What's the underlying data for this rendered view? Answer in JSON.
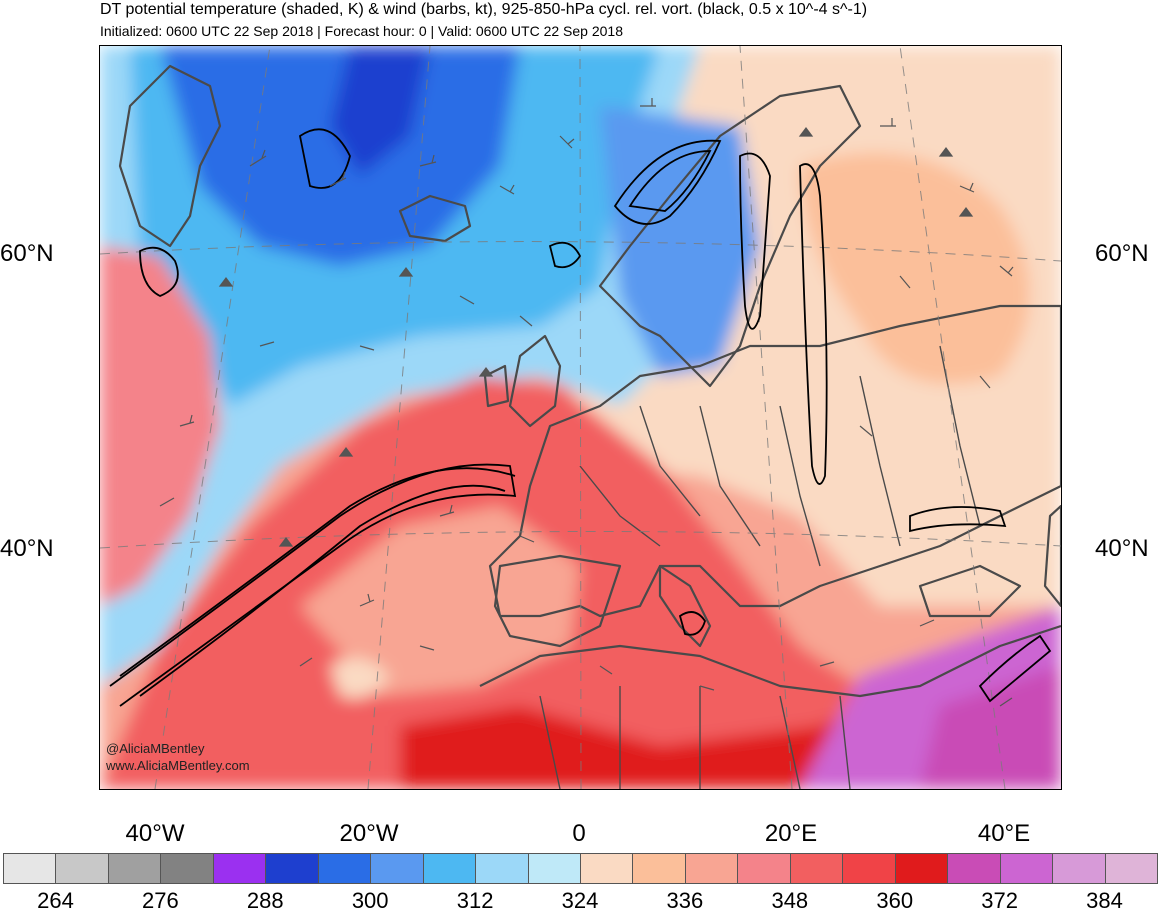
{
  "title": "DT potential temperature (shaded, K) & wind (barbs, kt), 925-850-hPa cycl. rel. vort. (black, 0.5 x 10^-4 s^-1)",
  "subtitle": "Initialized: 0600 UTC 22 Sep 2018 | Forecast hour: 0 | Valid: 0600 UTC 22 Sep 2018",
  "credit": {
    "handle": "@AliciaMBentley",
    "url": "www.AliciaMBentley.com"
  },
  "lat_labels": {
    "n60_left": "60°N",
    "n60_right": "60°N",
    "n40_left": "40°N",
    "n40_right": "40°N"
  },
  "lon_labels": {
    "w40": "40°W",
    "w20": "20°W",
    "zero": "0",
    "e20": "20°E",
    "e40": "40°E"
  },
  "colorbar": {
    "colors": [
      "#e6e6e6",
      "#c8c8c8",
      "#a0a0a0",
      "#828282",
      "#9b30f0",
      "#1e3fcf",
      "#2a6de6",
      "#5a99f0",
      "#4db8f2",
      "#9cd8f8",
      "#bfe9f8",
      "#fadac3",
      "#fbbf9a",
      "#f8a593",
      "#f4838a",
      "#f25f60",
      "#f04347",
      "#e01b1c",
      "#c94cb6",
      "#cc65d2",
      "#d79ad8",
      "#dfb4d8"
    ],
    "labels": [
      "264",
      "276",
      "288",
      "300",
      "312",
      "324",
      "336",
      "348",
      "360",
      "372",
      "384"
    ]
  },
  "icons": {
    "vorticity_contour": "black-contour-lines",
    "wind_barb": "wind-barb-icon"
  }
}
